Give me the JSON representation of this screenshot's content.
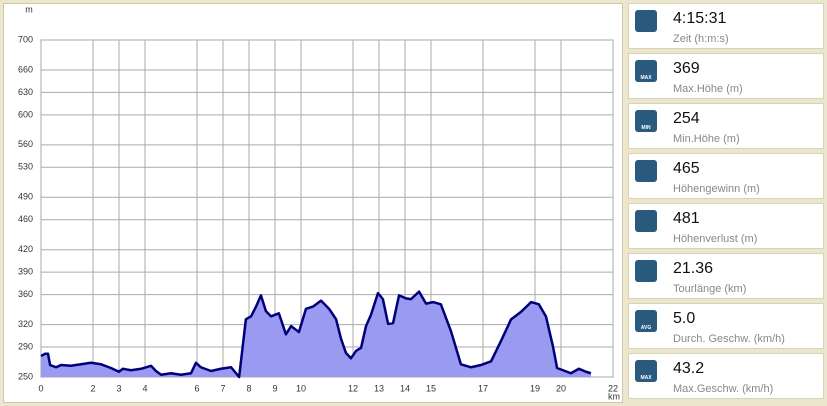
{
  "chart_data": {
    "type": "area",
    "y_label": "m",
    "x_label": "km",
    "xlim": [
      0,
      22
    ],
    "xticks": [
      0,
      2,
      3,
      4,
      6,
      7,
      8,
      9,
      10,
      12,
      13,
      14,
      15,
      17,
      19,
      20,
      22
    ],
    "ylim": [
      250,
      700
    ],
    "yticks": [
      250,
      290,
      320,
      360,
      390,
      420,
      460,
      490,
      530,
      560,
      600,
      630,
      660,
      700
    ],
    "grid": true,
    "line_color": "#00007a",
    "fill_color": "#9a9af0",
    "x": [
      0.0,
      0.15,
      0.27,
      0.35,
      0.58,
      0.77,
      1.15,
      1.54,
      1.92,
      2.31,
      2.69,
      3.0,
      3.15,
      3.46,
      3.85,
      4.23,
      4.42,
      4.62,
      5.0,
      5.38,
      5.77,
      5.96,
      6.15,
      6.54,
      6.92,
      7.31,
      7.62,
      7.88,
      8.08,
      8.27,
      8.46,
      8.65,
      8.85,
      9.15,
      9.42,
      9.62,
      9.92,
      10.19,
      10.46,
      10.77,
      11.08,
      11.35,
      11.54,
      11.73,
      11.92,
      12.12,
      12.31,
      12.5,
      12.69,
      12.96,
      13.15,
      13.35,
      13.54,
      13.77,
      14.04,
      14.23,
      14.54,
      14.81,
      15.08,
      15.38,
      15.77,
      16.15,
      16.54,
      16.92,
      17.31,
      17.69,
      18.08,
      18.46,
      18.85,
      19.15,
      19.42,
      19.69,
      19.85,
      20.08,
      20.38,
      20.69,
      20.96,
      21.15
    ],
    "values": [
      278,
      281,
      281,
      266,
      263,
      266,
      265,
      267,
      269,
      267,
      262,
      257,
      261,
      259,
      261,
      265,
      258,
      253,
      255,
      253,
      255,
      269,
      263,
      258,
      261,
      263,
      250,
      327,
      331,
      344,
      359,
      338,
      331,
      335,
      307,
      318,
      310,
      341,
      344,
      352,
      341,
      327,
      301,
      282,
      275,
      285,
      289,
      318,
      333,
      362,
      354,
      321,
      322,
      359,
      355,
      354,
      364,
      348,
      350,
      347,
      311,
      267,
      263,
      266,
      271,
      298,
      327,
      337,
      350,
      347,
      331,
      291,
      262,
      259,
      255,
      261,
      257,
      255
    ]
  },
  "stats": [
    {
      "value": "4:15:31",
      "label": "Zeit (h:m:s)",
      "badge": null
    },
    {
      "value": "369",
      "label": "Max.Höhe (m)",
      "badge": "MAX"
    },
    {
      "value": "254",
      "label": "Min.Höhe (m)",
      "badge": "MIN"
    },
    {
      "value": "465",
      "label": "Höhengewinn (m)",
      "badge": null
    },
    {
      "value": "481",
      "label": "Höhenverlust (m)",
      "badge": null
    },
    {
      "value": "21.36",
      "label": "Tourlänge (km)",
      "badge": null
    },
    {
      "value": "5.0",
      "label": "Durch. Geschw. (km/h)",
      "badge": "AVG"
    },
    {
      "value": "43.2",
      "label": "Max.Geschw. (km/h)",
      "badge": "MAX"
    }
  ]
}
